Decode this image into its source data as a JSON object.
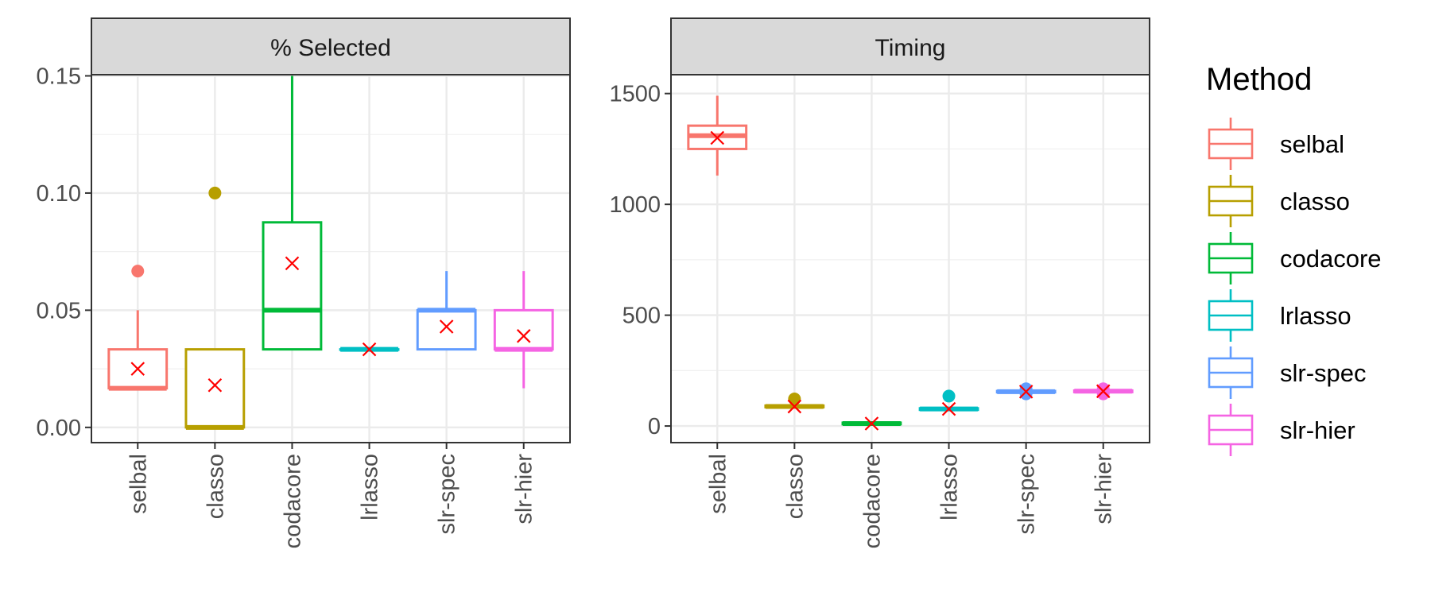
{
  "chart_data": {
    "type": "boxplot",
    "categories": [
      "selbal",
      "classo",
      "codacore",
      "lrlasso",
      "slr-spec",
      "slr-hier"
    ],
    "colors": {
      "selbal": "#F8766D",
      "classo": "#B79F00",
      "codacore": "#00BA38",
      "lrlasso": "#00BFC4",
      "slr-spec": "#619CFF",
      "slr-hier": "#F564E3"
    },
    "mean_marker_color": "#FF0000",
    "grid": true,
    "legend": {
      "title": "Method",
      "position": "right",
      "entries": [
        "selbal",
        "classo",
        "codacore",
        "lrlasso",
        "slr-spec",
        "slr-hier"
      ]
    },
    "panels": [
      {
        "title": "% Selected",
        "ylim": [
          -0.0065,
          0.1505
        ],
        "yticks": [
          0.0,
          0.05,
          0.1,
          0.15
        ],
        "ytick_labels": [
          "0.00",
          "0.05",
          "0.10",
          "0.15"
        ],
        "boxes": [
          {
            "category": "selbal",
            "whisker_low": 0.0167,
            "q1": 0.0167,
            "median": 0.0167,
            "q3": 0.0333,
            "whisker_high": 0.05,
            "mean": 0.025,
            "outliers": [
              0.0667
            ]
          },
          {
            "category": "classo",
            "whisker_low": 0.0,
            "q1": 0.0,
            "median": 0.0,
            "q3": 0.0333,
            "whisker_high": 0.0333,
            "mean": 0.018,
            "outliers": [
              0.1
            ]
          },
          {
            "category": "codacore",
            "whisker_low": 0.0333,
            "q1": 0.0333,
            "median": 0.05,
            "q3": 0.0875,
            "whisker_high": 0.15,
            "mean": 0.07,
            "outliers": []
          },
          {
            "category": "lrlasso",
            "whisker_low": 0.0333,
            "q1": 0.0333,
            "median": 0.0333,
            "q3": 0.0333,
            "whisker_high": 0.0333,
            "mean": 0.0333,
            "outliers": []
          },
          {
            "category": "slr-spec",
            "whisker_low": 0.0333,
            "q1": 0.0333,
            "median": 0.05,
            "q3": 0.05,
            "whisker_high": 0.0667,
            "mean": 0.043,
            "outliers": []
          },
          {
            "category": "slr-hier",
            "whisker_low": 0.0167,
            "q1": 0.0333,
            "median": 0.0333,
            "q3": 0.05,
            "whisker_high": 0.0667,
            "mean": 0.039,
            "outliers": []
          }
        ]
      },
      {
        "title": "Timing",
        "ylim": [
          -75,
          1585
        ],
        "yticks": [
          0,
          500,
          1000,
          1500
        ],
        "ytick_labels": [
          "0",
          "500",
          "1000",
          "1500"
        ],
        "boxes": [
          {
            "category": "selbal",
            "whisker_low": 1130,
            "q1": 1250,
            "median": 1310,
            "q3": 1355,
            "whisker_high": 1490,
            "mean": 1300,
            "outliers": []
          },
          {
            "category": "classo",
            "whisker_low": 82,
            "q1": 85,
            "median": 88,
            "q3": 92,
            "whisker_high": 96,
            "mean": 88,
            "outliers": [
              122
            ]
          },
          {
            "category": "codacore",
            "whisker_low": 5,
            "q1": 8,
            "median": 11,
            "q3": 15,
            "whisker_high": 18,
            "mean": 11,
            "outliers": []
          },
          {
            "category": "lrlasso",
            "whisker_low": 70,
            "q1": 73,
            "median": 77,
            "q3": 80,
            "whisker_high": 83,
            "mean": 77,
            "outliers": [
              135
            ]
          },
          {
            "category": "slr-spec",
            "whisker_low": 148,
            "q1": 152,
            "median": 155,
            "q3": 158,
            "whisker_high": 162,
            "mean": 155,
            "outliers": [
              145,
              168
            ]
          },
          {
            "category": "slr-hier",
            "whisker_low": 150,
            "q1": 153,
            "median": 157,
            "q3": 160,
            "whisker_high": 164,
            "mean": 157,
            "outliers": [
              145,
              168
            ]
          }
        ]
      }
    ]
  }
}
